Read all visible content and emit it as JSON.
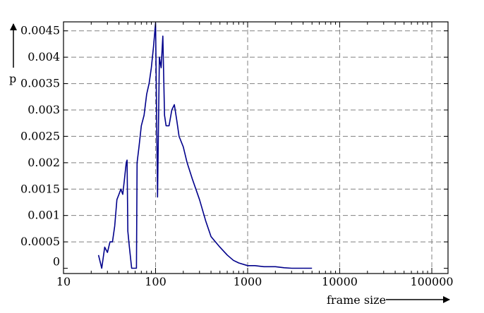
{
  "chart_data": {
    "type": "line",
    "xlabel": "frame size",
    "ylabel": "p",
    "x_scale": "log",
    "xlim": [
      10,
      150000
    ],
    "ylim": [
      -0.0001,
      0.00467
    ],
    "grid": true,
    "x_ticks": [
      10,
      100,
      1000,
      10000,
      100000
    ],
    "x_tick_labels": [
      "10",
      "100",
      "1000",
      "10000",
      "100000"
    ],
    "y_ticks": [
      0,
      0.0005,
      0.001,
      0.0015,
      0.002,
      0.0025,
      0.003,
      0.0035,
      0.004,
      0.0045
    ],
    "y_tick_labels": [
      "0",
      "0.0005",
      "0.001",
      "0.0015",
      "0.002",
      "0.0025",
      "0.003",
      "0.0035",
      "0.004",
      "0.0045"
    ],
    "series": [
      {
        "color": "#00008b",
        "points": [
          [
            24,
            0.00025
          ],
          [
            26,
            0.0
          ],
          [
            28,
            0.0004
          ],
          [
            30,
            0.0003
          ],
          [
            32,
            0.0005
          ],
          [
            34,
            0.0005
          ],
          [
            36,
            0.0008
          ],
          [
            38,
            0.0013
          ],
          [
            40,
            0.0014
          ],
          [
            42,
            0.0015
          ],
          [
            44,
            0.0014
          ],
          [
            46,
            0.0017
          ],
          [
            48,
            0.002
          ],
          [
            49,
            0.00205
          ],
          [
            50,
            0.0007
          ],
          [
            52,
            0.0004
          ],
          [
            55,
            0.0
          ],
          [
            60,
            0.0
          ],
          [
            62,
            0.0
          ],
          [
            63,
            0.002
          ],
          [
            66,
            0.0023
          ],
          [
            70,
            0.0027
          ],
          [
            75,
            0.0029
          ],
          [
            80,
            0.0033
          ],
          [
            85,
            0.0035
          ],
          [
            90,
            0.0038
          ],
          [
            95,
            0.0042
          ],
          [
            100,
            0.00465
          ],
          [
            103,
            0.0026
          ],
          [
            105,
            0.00135
          ],
          [
            110,
            0.004
          ],
          [
            115,
            0.0038
          ],
          [
            120,
            0.0044
          ],
          [
            125,
            0.0029
          ],
          [
            130,
            0.0027
          ],
          [
            140,
            0.0027
          ],
          [
            150,
            0.003
          ],
          [
            160,
            0.0031
          ],
          [
            170,
            0.0028
          ],
          [
            180,
            0.0025
          ],
          [
            200,
            0.0023
          ],
          [
            220,
            0.002
          ],
          [
            250,
            0.0017
          ],
          [
            300,
            0.0013
          ],
          [
            350,
            0.0009
          ],
          [
            400,
            0.0006
          ],
          [
            500,
            0.0004
          ],
          [
            600,
            0.00025
          ],
          [
            700,
            0.00015
          ],
          [
            800,
            0.0001
          ],
          [
            1000,
            5e-05
          ],
          [
            1200,
            5e-05
          ],
          [
            1500,
            3e-05
          ],
          [
            2000,
            3e-05
          ],
          [
            2500,
            1e-05
          ],
          [
            3000,
            0.0
          ],
          [
            3500,
            0.0
          ],
          [
            4000,
            0.0
          ],
          [
            5000,
            0.0
          ]
        ]
      }
    ]
  }
}
